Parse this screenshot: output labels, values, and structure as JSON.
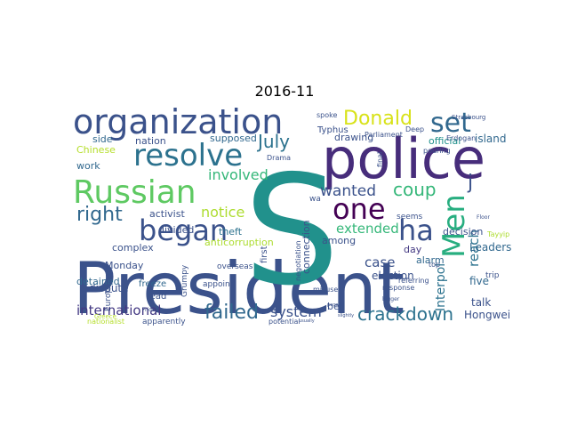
{
  "chart_data": {
    "type": "wordcloud",
    "title": "2016-11",
    "background": "#ffffff",
    "colormap": "viridis",
    "words": [
      {
        "text": "President",
        "color": "#3b528b"
      },
      {
        "text": "S",
        "color": "#21918c"
      },
      {
        "text": "police",
        "color": "#472d7b"
      },
      {
        "text": "organization",
        "color": "#3b528b"
      },
      {
        "text": "Russian",
        "color": "#5ec962"
      },
      {
        "text": "resolve",
        "color": "#2c728e"
      },
      {
        "text": "began",
        "color": "#3b528b"
      },
      {
        "text": "ha",
        "color": "#3b528b"
      },
      {
        "text": "one",
        "color": "#440154"
      },
      {
        "text": "set",
        "color": "#31688e"
      },
      {
        "text": "Men",
        "color": "#28ae80"
      },
      {
        "text": "right",
        "color": "#31688e"
      },
      {
        "text": "Donald",
        "color": "#d8e219"
      },
      {
        "text": "July",
        "color": "#2c728e"
      },
      {
        "text": "failed",
        "color": "#31688e"
      },
      {
        "text": "crackdown",
        "color": "#2c728e"
      },
      {
        "text": "coup",
        "color": "#35b779"
      },
      {
        "text": "wanted",
        "color": "#3b528b"
      },
      {
        "text": "international",
        "color": "#443983"
      },
      {
        "text": "system",
        "color": "#3b528b"
      },
      {
        "text": "involved",
        "color": "#35b779"
      },
      {
        "text": "notice",
        "color": "#addc30"
      },
      {
        "text": "extended",
        "color": "#35b779"
      },
      {
        "text": "reach",
        "color": "#2c728e"
      },
      {
        "text": "case",
        "color": "#3b528b"
      },
      {
        "text": "Interpol",
        "color": "#2c728e"
      },
      {
        "text": "Hongwei",
        "color": "#3b528b"
      },
      {
        "text": "j",
        "color": "#3b528b"
      },
      {
        "text": "Leaders",
        "color": "#31688e"
      },
      {
        "text": "five",
        "color": "#31688e"
      },
      {
        "text": "talk",
        "color": "#3b528b"
      },
      {
        "text": "island",
        "color": "#31688e"
      },
      {
        "text": "official",
        "color": "#21918c"
      },
      {
        "text": "election",
        "color": "#3b528b"
      },
      {
        "text": "alarm",
        "color": "#31688e"
      },
      {
        "text": "decision",
        "color": "#3b528b"
      },
      {
        "text": "day",
        "color": "#443983"
      },
      {
        "text": "dispute",
        "color": "#3b528b"
      },
      {
        "text": "connection",
        "color": "#3b528b"
      },
      {
        "text": "among",
        "color": "#3b528b"
      },
      {
        "text": "bell",
        "color": "#3b528b"
      },
      {
        "text": "drawing",
        "color": "#3b528b"
      },
      {
        "text": "Typhus",
        "color": "#3b528b"
      },
      {
        "text": "supposed",
        "color": "#31688e"
      },
      {
        "text": "theft",
        "color": "#2c728e"
      },
      {
        "text": "complex",
        "color": "#3b528b"
      },
      {
        "text": "activist",
        "color": "#3b528b"
      },
      {
        "text": "divided",
        "color": "#3b528b"
      },
      {
        "text": "anticorruption",
        "color": "#addc30"
      },
      {
        "text": "Monday",
        "color": "#3b528b"
      },
      {
        "text": "detained",
        "color": "#31688e"
      },
      {
        "text": "work",
        "color": "#31688e"
      },
      {
        "text": "Chinese",
        "color": "#b5de2b"
      },
      {
        "text": "side",
        "color": "#31688e"
      },
      {
        "text": "nation",
        "color": "#3b528b"
      },
      {
        "text": "freeze",
        "color": "#31688e"
      },
      {
        "text": "lead",
        "color": "#3b528b"
      },
      {
        "text": "appoint",
        "color": "#3b528b"
      },
      {
        "text": "overseas",
        "color": "#3b528b"
      },
      {
        "text": "Grumpy",
        "color": "#3b528b"
      },
      {
        "text": "European",
        "color": "#3b528b"
      },
      {
        "text": "apparently",
        "color": "#3b528b"
      },
      {
        "text": "nationalist",
        "color": "#b5de2b"
      },
      {
        "text": "potential",
        "color": "#3b528b"
      },
      {
        "text": "first",
        "color": "#3b528b"
      },
      {
        "text": "seems",
        "color": "#3b528b"
      },
      {
        "text": "top",
        "color": "#3b528b"
      },
      {
        "text": "spoke",
        "color": "#3b528b"
      },
      {
        "text": "Parliament",
        "color": "#3b528b"
      },
      {
        "text": "wa",
        "color": "#3b528b"
      },
      {
        "text": "Drama",
        "color": "#3b528b"
      },
      {
        "text": "trip",
        "color": "#3b528b"
      },
      {
        "text": "response",
        "color": "#3b528b"
      },
      {
        "text": "referring",
        "color": "#3b528b"
      },
      {
        "text": "negotiation",
        "color": "#3b528b"
      },
      {
        "text": "final",
        "color": "#3b528b"
      },
      {
        "text": "Erdogan",
        "color": "#3b528b"
      },
      {
        "text": "pouring",
        "color": "#3b528b"
      },
      {
        "text": "Deep",
        "color": "#3b528b"
      },
      {
        "text": "Strasbourg",
        "color": "#3b528b"
      },
      {
        "text": "Greece",
        "color": "#b5de2b"
      },
      {
        "text": "Friday",
        "color": "#3b528b"
      },
      {
        "text": "Tayyip",
        "color": "#addc30"
      },
      {
        "text": "Floor",
        "color": "#3b528b"
      },
      {
        "text": "elect",
        "color": "#3b528b"
      },
      {
        "text": "misuse",
        "color": "#3b528b"
      },
      {
        "text": "people",
        "color": "#3b528b"
      },
      {
        "text": "slightly",
        "color": "#3b528b"
      },
      {
        "text": "usually",
        "color": "#3b528b"
      },
      {
        "text": "bigger",
        "color": "#3b528b"
      }
    ]
  }
}
